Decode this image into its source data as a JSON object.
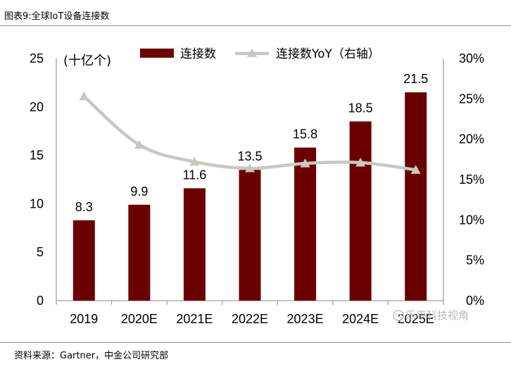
{
  "figure": {
    "title": "图表9:全球IoT设备连接数",
    "source": "资料来源：Gartner，中金公司研究部",
    "watermark": "乐平科技视角"
  },
  "chart_data": {
    "type": "bar",
    "categories": [
      "2019",
      "2020E",
      "2021E",
      "2022E",
      "2023E",
      "2024E",
      "2025E"
    ],
    "series": [
      {
        "name": "连接数",
        "type": "bar",
        "axis": "left",
        "color": "#6b0000",
        "values": [
          8.3,
          9.9,
          11.6,
          13.5,
          15.8,
          18.5,
          21.5
        ],
        "labels": [
          "8.3",
          "9.9",
          "11.6",
          "13.5",
          "15.8",
          "18.5",
          "21.5"
        ]
      },
      {
        "name": "连接数YoY（右轴）",
        "type": "line",
        "axis": "right",
        "color": "#c8c8c0",
        "values": [
          25.3,
          19.3,
          17.2,
          16.4,
          17.0,
          17.1,
          16.2
        ]
      }
    ],
    "y_left": {
      "range": [
        0,
        25
      ],
      "ticks": [
        0,
        5,
        10,
        15,
        20,
        25
      ],
      "label": "(十亿个)"
    },
    "y_right": {
      "range": [
        0,
        30
      ],
      "ticks": [
        "0%",
        "5%",
        "10%",
        "15%",
        "20%",
        "25%",
        "30%"
      ]
    },
    "legend": {
      "position": "top"
    }
  }
}
